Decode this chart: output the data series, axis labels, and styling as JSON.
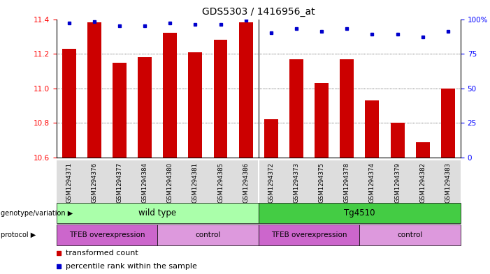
{
  "title": "GDS5303 / 1416956_at",
  "samples": [
    "GSM1294371",
    "GSM1294376",
    "GSM1294377",
    "GSM1294384",
    "GSM1294380",
    "GSM1294381",
    "GSM1294385",
    "GSM1294386",
    "GSM1294372",
    "GSM1294373",
    "GSM1294375",
    "GSM1294378",
    "GSM1294374",
    "GSM1294379",
    "GSM1294382",
    "GSM1294383"
  ],
  "bar_values": [
    11.23,
    11.38,
    11.15,
    11.18,
    11.32,
    11.21,
    11.28,
    11.38,
    10.82,
    11.17,
    11.03,
    11.17,
    10.93,
    10.8,
    10.69,
    11.0
  ],
  "percentile_values": [
    97,
    98,
    95,
    95,
    97,
    96,
    96,
    99,
    90,
    93,
    91,
    93,
    89,
    89,
    87,
    91
  ],
  "ylim_left": [
    10.6,
    11.4
  ],
  "ylim_right": [
    0,
    100
  ],
  "yticks_left": [
    10.6,
    10.8,
    11.0,
    11.2,
    11.4
  ],
  "yticks_right": [
    0,
    25,
    50,
    75,
    100
  ],
  "ytick_labels_right": [
    "0",
    "25",
    "50",
    "75",
    "100%"
  ],
  "bar_color": "#cc0000",
  "dot_color": "#0000cc",
  "genotype_groups": [
    {
      "label": "wild type",
      "start": 0,
      "end": 8,
      "color": "#aaffaa"
    },
    {
      "label": "Tg4510",
      "start": 8,
      "end": 16,
      "color": "#44cc44"
    }
  ],
  "protocol_groups": [
    {
      "label": "TFEB overexpression",
      "start": 0,
      "end": 4,
      "color": "#cc66cc"
    },
    {
      "label": "control",
      "start": 4,
      "end": 8,
      "color": "#dd99dd"
    },
    {
      "label": "TFEB overexpression",
      "start": 8,
      "end": 12,
      "color": "#cc66cc"
    },
    {
      "label": "control",
      "start": 12,
      "end": 16,
      "color": "#dd99dd"
    }
  ],
  "legend_items": [
    {
      "label": "transformed count",
      "color": "#cc0000"
    },
    {
      "label": "percentile rank within the sample",
      "color": "#0000cc"
    }
  ],
  "separator_col": 8,
  "sample_bg_color": "#dddddd",
  "genotype_label": "genotype/variation",
  "protocol_label": "protocol"
}
